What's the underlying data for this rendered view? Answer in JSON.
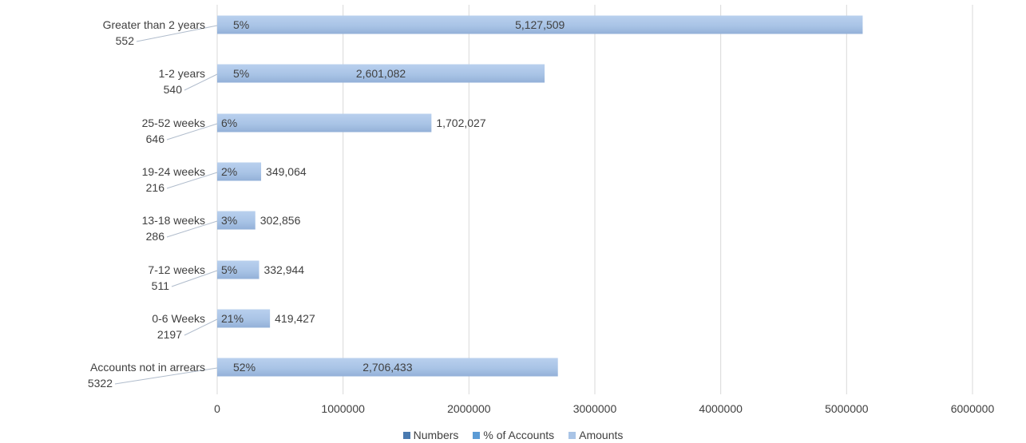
{
  "chart_data": {
    "type": "bar",
    "orientation": "horizontal",
    "categories": [
      "Greater than 2 years",
      "1-2 years",
      "25-52 weeks",
      "19-24 weeks",
      "13-18 weeks",
      "7-12 weeks",
      "0-6 Weeks",
      "Accounts not in arrears"
    ],
    "series": [
      {
        "name": "Numbers",
        "values": [
          552,
          540,
          646,
          216,
          286,
          511,
          2197,
          5322
        ],
        "color": "#4a7ab0"
      },
      {
        "name": "% of Accounts",
        "values": [
          "5%",
          "5%",
          "6%",
          "2%",
          "3%",
          "5%",
          "21%",
          "52%"
        ],
        "color": "#5b9bd5"
      },
      {
        "name": "Amounts",
        "values": [
          5127509,
          2601082,
          1702027,
          349064,
          302856,
          332944,
          419427,
          2706433
        ],
        "value_labels": [
          "5,127,509",
          "2,601,082",
          "1,702,027",
          "349,064",
          "302,856",
          "332,944",
          "419,427",
          "2,706,433"
        ],
        "color": "#a9c4e6"
      }
    ],
    "xlim": [
      0,
      6000000
    ],
    "x_ticks": [
      0,
      1000000,
      2000000,
      3000000,
      4000000,
      5000000,
      6000000
    ],
    "x_tick_labels": [
      "0",
      "1000000",
      "2000000",
      "3000000",
      "4000000",
      "5000000",
      "6000000"
    ],
    "grid": true,
    "legend_placement": "bottom",
    "title": "",
    "xlabel": "",
    "ylabel": ""
  }
}
